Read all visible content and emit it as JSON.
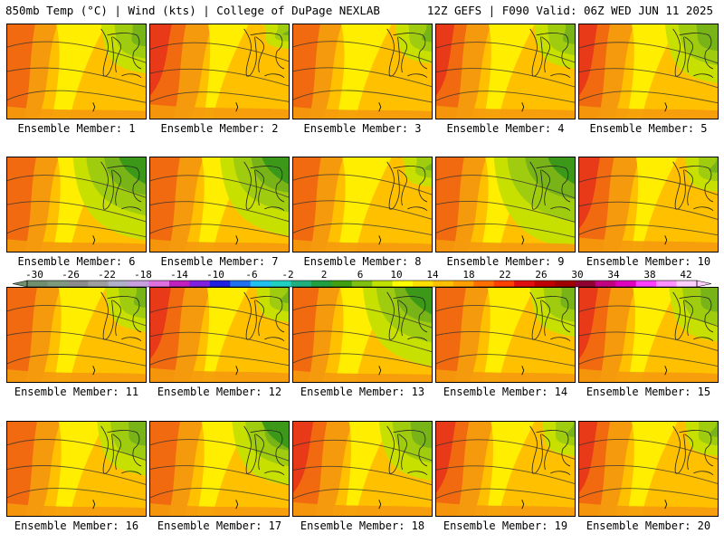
{
  "header": {
    "left": "850mb Temp (°C) | Wind (kts) | College of DuPage NEXLAB",
    "right": "12Z GEFS | F090 Valid: 06Z WED JUN 11 2025"
  },
  "caption_prefix": "Ensemble Member: ",
  "members": [
    {
      "id": 1,
      "label": "Ensemble Member: 1",
      "red": 0.6,
      "green": 0.5
    },
    {
      "id": 2,
      "label": "Ensemble Member: 2",
      "red": 1.0,
      "green": 0.25
    },
    {
      "id": 3,
      "label": "Ensemble Member: 3",
      "red": 0.55,
      "green": 0.4
    },
    {
      "id": 4,
      "label": "Ensemble Member: 4",
      "red": 0.75,
      "green": 0.45
    },
    {
      "id": 5,
      "label": "Ensemble Member: 5",
      "red": 0.75,
      "green": 0.6
    },
    {
      "id": 6,
      "label": "Ensemble Member: 6",
      "red": 0.65,
      "green": 0.85
    },
    {
      "id": 7,
      "label": "Ensemble Member: 7",
      "red": 0.7,
      "green": 0.8
    },
    {
      "id": 8,
      "label": "Ensemble Member: 8",
      "red": 0.6,
      "green": 0.3
    },
    {
      "id": 9,
      "label": "Ensemble Member: 9",
      "red": 0.6,
      "green": 0.95
    },
    {
      "id": 10,
      "label": "Ensemble Member: 10",
      "red": 0.95,
      "green": 0.35
    },
    {
      "id": 11,
      "label": "Ensemble Member: 11",
      "red": 0.7,
      "green": 0.45
    },
    {
      "id": 12,
      "label": "Ensemble Member: 12",
      "red": 0.95,
      "green": 0.35
    },
    {
      "id": 13,
      "label": "Ensemble Member: 13",
      "red": 0.5,
      "green": 0.8
    },
    {
      "id": 14,
      "label": "Ensemble Member: 14",
      "red": 0.7,
      "green": 0.5
    },
    {
      "id": 15,
      "label": "Ensemble Member: 15",
      "red": 0.8,
      "green": 0.55
    },
    {
      "id": 16,
      "label": "Ensemble Member: 16",
      "red": 0.7,
      "green": 0.55
    },
    {
      "id": 17,
      "label": "Ensemble Member: 17",
      "red": 0.7,
      "green": 0.65
    },
    {
      "id": 18,
      "label": "Ensemble Member: 18",
      "red": 0.9,
      "green": 0.6
    },
    {
      "id": 19,
      "label": "Ensemble Member: 19",
      "red": 0.85,
      "green": 0.35
    },
    {
      "id": 20,
      "label": "Ensemble Member: 20",
      "red": 0.75,
      "green": 0.35
    }
  ],
  "colorbar": {
    "ticks": [
      "-30",
      "-26",
      "-22",
      "-18",
      "-14",
      "-10",
      "-6",
      "-2",
      "2",
      "6",
      "10",
      "14",
      "18",
      "22",
      "26",
      "30",
      "34",
      "38",
      "42"
    ],
    "colors": [
      "#6f8f6f",
      "#7f997f",
      "#8c8c8c",
      "#9e9e9e",
      "#b0b0c8",
      "#c8a0e0",
      "#e070e0",
      "#c020c0",
      "#8020e0",
      "#2020e0",
      "#2070f0",
      "#20c0f0",
      "#20d0c0",
      "#20b080",
      "#20a040",
      "#40a010",
      "#80c010",
      "#c0e000",
      "#ffff00",
      "#ffe000",
      "#ffc000",
      "#ffa000",
      "#ff7000",
      "#ff4000",
      "#e01010",
      "#c00000",
      "#a00000",
      "#900030",
      "#c00080",
      "#e000c0",
      "#ff40ff",
      "#ff90ff",
      "#ffd0ff"
    ]
  },
  "field_colors": {
    "dark_red": "#e83a18",
    "red_orange": "#f26a10",
    "orange": "#f59a0c",
    "light_orange": "#ffc000",
    "yellow": "#ffee00",
    "yellow_green": "#c8e000",
    "light_green": "#a0cc10",
    "green": "#78b418",
    "dark_green": "#3c9818"
  }
}
